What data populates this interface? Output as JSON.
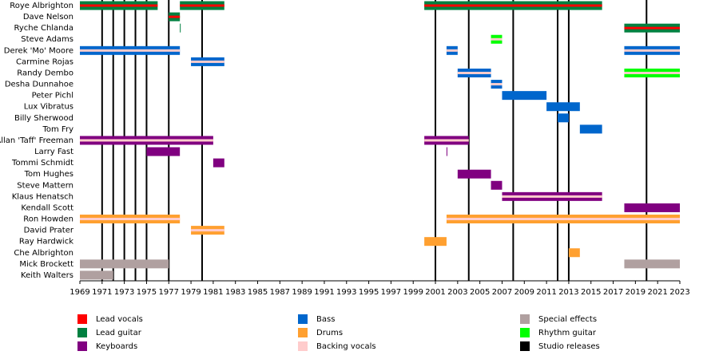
{
  "chart_data": {
    "type": "timeline",
    "xlim": [
      1969,
      2023
    ],
    "xticks": [
      1969,
      1971,
      1973,
      1975,
      1977,
      1979,
      1981,
      1983,
      1985,
      1987,
      1989,
      1991,
      1993,
      1995,
      1997,
      1999,
      2001,
      2003,
      2005,
      2007,
      2009,
      2011,
      2013,
      2015,
      2017,
      2019,
      2021,
      2023
    ],
    "releases": {
      "color": "#000000",
      "x": [
        1971,
        1972,
        1973,
        1974,
        1975,
        1977,
        1980,
        2001,
        2004,
        2008,
        2012,
        2013,
        2020
      ]
    },
    "legend": [
      {
        "name": "Lead vocals",
        "color": "#ff0000"
      },
      {
        "name": "Lead guitar",
        "color": "#008040"
      },
      {
        "name": "Keyboards",
        "color": "#800080"
      },
      {
        "name": "Bass",
        "color": "#0066cc"
      },
      {
        "name": "Drums",
        "color": "#ffa030"
      },
      {
        "name": "Backing vocals",
        "color": "#ffcccc"
      },
      {
        "name": "Special effects",
        "color": "#b0a0a0"
      },
      {
        "name": "Rhythm guitar",
        "color": "#00ff00"
      },
      {
        "name": "Studio releases",
        "color": "#000000"
      }
    ],
    "members": [
      {
        "name": "Roye Albrighton",
        "bars": [
          {
            "start": 1969,
            "end": 1976,
            "color": "#008040",
            "stripe": "#ff0000"
          },
          {
            "start": 1978,
            "end": 1982,
            "color": "#008040",
            "stripe": "#ff0000"
          },
          {
            "start": 2000,
            "end": 2016,
            "color": "#008040",
            "stripe": "#ff0000"
          }
        ]
      },
      {
        "name": "Dave Nelson",
        "bars": [
          {
            "start": 1977,
            "end": 1978,
            "color": "#008040",
            "stripe": "#ff0000"
          }
        ]
      },
      {
        "name": "Ryche Chlanda",
        "bars": [
          {
            "start": 1978,
            "end": 1978.05,
            "color": "#008040"
          },
          {
            "start": 2018,
            "end": 2023,
            "color": "#008040",
            "stripe": "#ff0000"
          }
        ]
      },
      {
        "name": "Steve Adams",
        "bars": [
          {
            "start": 2006,
            "end": 2007,
            "color": "#00ff00",
            "stripe": "#ffcccc"
          }
        ]
      },
      {
        "name": "Derek 'Mo' Moore",
        "bars": [
          {
            "start": 1969,
            "end": 1978,
            "color": "#0066cc",
            "stripe": "#ffcccc"
          },
          {
            "start": 2002,
            "end": 2003,
            "color": "#0066cc",
            "stripe": "#ffcccc"
          },
          {
            "start": 2018,
            "end": 2023,
            "color": "#0066cc",
            "stripe": "#ffcccc"
          }
        ]
      },
      {
        "name": "Carmine Rojas",
        "bars": [
          {
            "start": 1979,
            "end": 1982,
            "color": "#0066cc",
            "stripe": "#ffcccc"
          }
        ]
      },
      {
        "name": "Randy Dembo",
        "bars": [
          {
            "start": 2003,
            "end": 2006,
            "color": "#0066cc",
            "stripe": "#ffcccc"
          },
          {
            "start": 2018,
            "end": 2023,
            "color": "#00ff00",
            "stripe": "#ffcccc"
          }
        ]
      },
      {
        "name": "Desha Dunnahoe",
        "bars": [
          {
            "start": 2006,
            "end": 2007,
            "color": "#0066cc",
            "stripe": "#ffcccc"
          }
        ]
      },
      {
        "name": "Peter Pichl",
        "bars": [
          {
            "start": 2007,
            "end": 2011,
            "color": "#0066cc"
          }
        ]
      },
      {
        "name": "Lux Vibratus",
        "bars": [
          {
            "start": 2011,
            "end": 2014,
            "color": "#0066cc"
          }
        ]
      },
      {
        "name": "Billy Sherwood",
        "bars": [
          {
            "start": 2012,
            "end": 2013,
            "color": "#0066cc"
          }
        ]
      },
      {
        "name": "Tom Fry",
        "bars": [
          {
            "start": 2014,
            "end": 2016,
            "color": "#0066cc"
          }
        ]
      },
      {
        "name": "Allan 'Taff' Freeman",
        "bars": [
          {
            "start": 1969,
            "end": 1981,
            "color": "#800080",
            "stripe": "#ffcccc"
          },
          {
            "start": 2000,
            "end": 2004,
            "color": "#800080",
            "stripe": "#ffcccc"
          }
        ]
      },
      {
        "name": "Larry Fast",
        "bars": [
          {
            "start": 1975,
            "end": 1978,
            "color": "#800080"
          },
          {
            "start": 2002,
            "end": 2002.05,
            "color": "#800080"
          }
        ]
      },
      {
        "name": "Tommi Schmidt",
        "bars": [
          {
            "start": 1981,
            "end": 1982,
            "color": "#800080"
          }
        ]
      },
      {
        "name": "Tom Hughes",
        "bars": [
          {
            "start": 2003,
            "end": 2006,
            "color": "#800080"
          }
        ]
      },
      {
        "name": "Steve Mattern",
        "bars": [
          {
            "start": 2006,
            "end": 2007,
            "color": "#800080"
          }
        ]
      },
      {
        "name": "Klaus Henatsch",
        "bars": [
          {
            "start": 2007,
            "end": 2016,
            "color": "#800080",
            "stripe": "#ffcccc"
          }
        ]
      },
      {
        "name": "Kendall Scott",
        "bars": [
          {
            "start": 2018,
            "end": 2023,
            "color": "#800080"
          }
        ]
      },
      {
        "name": "Ron Howden",
        "bars": [
          {
            "start": 1969,
            "end": 1978,
            "color": "#ffa030",
            "stripe": "#ffcccc"
          },
          {
            "start": 2002,
            "end": 2023,
            "color": "#ffa030",
            "stripe": "#ffcccc"
          }
        ]
      },
      {
        "name": "David Prater",
        "bars": [
          {
            "start": 1979,
            "end": 1982,
            "color": "#ffa030",
            "stripe": "#ffcccc"
          }
        ]
      },
      {
        "name": "Ray Hardwick",
        "bars": [
          {
            "start": 2000,
            "end": 2002,
            "color": "#ffa030"
          }
        ]
      },
      {
        "name": "Che Albrighton",
        "bars": [
          {
            "start": 2013,
            "end": 2014,
            "color": "#ffa030"
          }
        ]
      },
      {
        "name": "Mick Brockett",
        "bars": [
          {
            "start": 1969,
            "end": 1977,
            "color": "#b0a0a0"
          },
          {
            "start": 2018,
            "end": 2023,
            "color": "#b0a0a0"
          }
        ]
      },
      {
        "name": "Keith Walters",
        "bars": [
          {
            "start": 1969,
            "end": 1972,
            "color": "#b0a0a0"
          }
        ]
      }
    ]
  }
}
